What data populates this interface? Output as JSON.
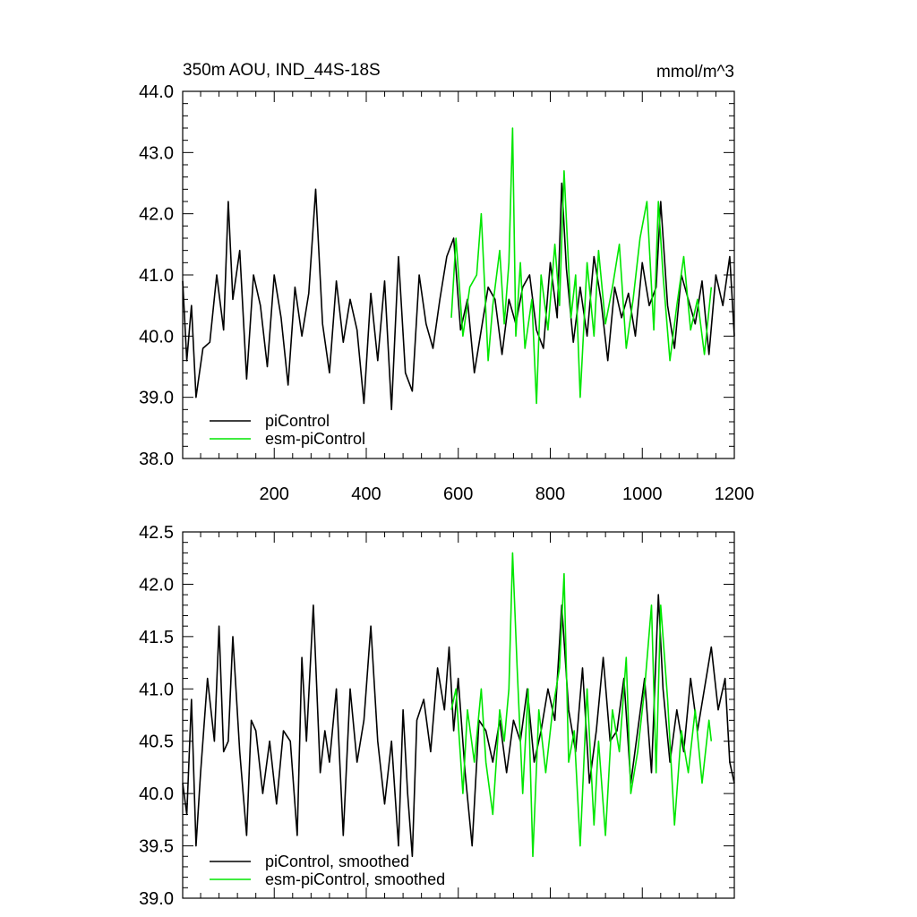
{
  "chart_data": [
    {
      "type": "line",
      "title": "350m AOU, IND_44S-18S",
      "units": "mmol/m^3",
      "xlim": [
        1,
        1200
      ],
      "ylim": [
        38.0,
        44.0
      ],
      "x_ticks": [
        200,
        400,
        600,
        800,
        1000,
        1200
      ],
      "x_tick_labels": [
        "200",
        "400",
        "600",
        "800",
        "1000",
        "1200"
      ],
      "y_ticks": [
        38.0,
        39.0,
        40.0,
        41.0,
        42.0,
        43.0,
        44.0
      ],
      "y_tick_labels": [
        "38.0",
        "39.0",
        "40.0",
        "41.0",
        "42.0",
        "43.0",
        "44.0"
      ],
      "legend_position": "bottom-left",
      "series": [
        {
          "name": "piControl",
          "color": "#000000",
          "x": [
            1,
            10,
            20,
            30,
            45,
            60,
            75,
            90,
            100,
            110,
            125,
            140,
            155,
            170,
            185,
            200,
            215,
            230,
            245,
            260,
            275,
            290,
            305,
            320,
            335,
            350,
            365,
            380,
            395,
            410,
            425,
            440,
            455,
            470,
            485,
            500,
            515,
            530,
            545,
            560,
            575,
            590,
            605,
            620,
            635,
            650,
            665,
            680,
            695,
            710,
            725,
            740,
            755,
            770,
            785,
            800,
            815,
            825,
            835,
            850,
            865,
            880,
            895,
            910,
            925,
            940,
            955,
            970,
            985,
            1000,
            1015,
            1030,
            1040,
            1055,
            1070,
            1085,
            1100,
            1115,
            1130,
            1145,
            1160,
            1175,
            1190,
            1200
          ],
          "y": [
            40.9,
            39.6,
            40.5,
            39.0,
            39.8,
            39.9,
            41.0,
            40.1,
            42.2,
            40.6,
            41.4,
            39.3,
            41.0,
            40.5,
            39.5,
            41.0,
            40.3,
            39.2,
            40.8,
            40.0,
            40.7,
            42.4,
            40.2,
            39.4,
            40.9,
            39.9,
            40.6,
            40.1,
            38.9,
            40.7,
            39.6,
            40.9,
            38.8,
            41.3,
            39.4,
            39.1,
            41.0,
            40.2,
            39.8,
            40.6,
            41.3,
            41.6,
            40.1,
            40.6,
            39.4,
            40.1,
            40.8,
            40.6,
            39.7,
            40.6,
            40.2,
            40.8,
            41.0,
            40.1,
            39.8,
            41.2,
            40.3,
            42.5,
            41.1,
            39.9,
            40.8,
            40.0,
            41.3,
            40.6,
            39.6,
            40.8,
            40.3,
            40.7,
            40.0,
            41.2,
            40.5,
            40.8,
            42.2,
            40.5,
            39.8,
            41.0,
            40.6,
            40.2,
            40.9,
            39.7,
            41.0,
            40.5,
            41.3,
            40.0
          ]
        },
        {
          "name": "esm-piControl",
          "color": "#00e600",
          "x": [
            585,
            595,
            610,
            625,
            640,
            650,
            665,
            675,
            690,
            700,
            710,
            718,
            725,
            735,
            745,
            760,
            770,
            780,
            795,
            810,
            820,
            830,
            845,
            855,
            865,
            880,
            895,
            905,
            920,
            935,
            950,
            965,
            980,
            995,
            1010,
            1025,
            1035,
            1045,
            1060,
            1075,
            1090,
            1105,
            1120,
            1135,
            1150
          ],
          "y": [
            40.3,
            41.6,
            40.0,
            40.8,
            41.0,
            42.0,
            39.6,
            40.5,
            41.4,
            40.2,
            41.2,
            43.4,
            40.0,
            41.2,
            39.8,
            40.6,
            38.9,
            41.0,
            40.1,
            41.5,
            40.5,
            42.7,
            40.3,
            41.0,
            39.0,
            41.2,
            40.0,
            41.4,
            40.2,
            40.8,
            41.5,
            39.8,
            40.6,
            41.6,
            42.2,
            40.1,
            42.2,
            41.0,
            39.6,
            40.5,
            41.3,
            40.1,
            40.6,
            39.7,
            40.8
          ]
        }
      ]
    },
    {
      "type": "line",
      "title": "",
      "xlim": [
        1,
        1200
      ],
      "ylim": [
        39.0,
        42.5
      ],
      "x_ticks": [
        200,
        400,
        600,
        800,
        1000,
        1200
      ],
      "x_tick_labels": [],
      "y_ticks": [
        39.0,
        39.5,
        40.0,
        40.5,
        41.0,
        41.5,
        42.0,
        42.5
      ],
      "y_tick_labels": [
        "39.0",
        "39.5",
        "40.0",
        "40.5",
        "41.0",
        "41.5",
        "42.0",
        "42.5"
      ],
      "legend_position": "bottom-left",
      "series": [
        {
          "name": "piControl, smoothed",
          "color": "#000000",
          "x": [
            1,
            10,
            20,
            30,
            40,
            55,
            70,
            80,
            90,
            100,
            110,
            125,
            140,
            150,
            160,
            175,
            190,
            205,
            220,
            235,
            250,
            260,
            270,
            285,
            300,
            310,
            320,
            335,
            350,
            365,
            380,
            395,
            410,
            425,
            440,
            455,
            470,
            480,
            490,
            500,
            510,
            525,
            540,
            555,
            570,
            580,
            590,
            600,
            615,
            630,
            645,
            660,
            675,
            690,
            705,
            720,
            735,
            750,
            765,
            780,
            795,
            810,
            825,
            840,
            855,
            870,
            885,
            900,
            915,
            930,
            945,
            960,
            975,
            990,
            1005,
            1020,
            1035,
            1045,
            1060,
            1075,
            1090,
            1105,
            1120,
            1135,
            1150,
            1165,
            1180,
            1190,
            1200
          ],
          "y": [
            40.1,
            39.8,
            40.9,
            39.5,
            40.2,
            41.1,
            40.5,
            41.6,
            40.4,
            40.5,
            41.5,
            40.4,
            39.6,
            40.7,
            40.6,
            40.0,
            40.5,
            39.9,
            40.6,
            40.5,
            39.6,
            41.3,
            40.5,
            41.8,
            40.2,
            40.6,
            40.3,
            41.0,
            39.6,
            41.0,
            40.3,
            40.7,
            41.6,
            40.5,
            39.9,
            40.5,
            39.5,
            40.8,
            40.0,
            39.4,
            40.7,
            40.9,
            40.4,
            41.2,
            40.8,
            41.4,
            40.6,
            41.1,
            40.2,
            39.5,
            40.7,
            40.6,
            40.3,
            40.7,
            40.2,
            40.7,
            40.5,
            41.0,
            40.3,
            40.6,
            41.0,
            40.7,
            41.8,
            40.8,
            40.4,
            41.2,
            40.1,
            40.6,
            41.3,
            40.5,
            40.6,
            41.1,
            40.1,
            40.6,
            41.1,
            40.2,
            41.9,
            41.0,
            40.3,
            40.8,
            40.4,
            41.1,
            40.6,
            41.0,
            41.4,
            40.8,
            41.1,
            40.3,
            40.1
          ]
        },
        {
          "name": "esm-piControl, smoothed",
          "color": "#00e600",
          "x": [
            585,
            595,
            610,
            620,
            635,
            650,
            660,
            675,
            690,
            700,
            710,
            718,
            728,
            740,
            752,
            762,
            775,
            790,
            805,
            820,
            830,
            840,
            852,
            865,
            880,
            895,
            905,
            920,
            935,
            950,
            965,
            975,
            990,
            1005,
            1020,
            1030,
            1040,
            1055,
            1070,
            1085,
            1100,
            1115,
            1130,
            1145,
            1150
          ],
          "y": [
            40.8,
            41.0,
            40.0,
            40.8,
            40.3,
            41.0,
            40.3,
            39.8,
            40.8,
            40.5,
            41.0,
            42.3,
            41.2,
            40.0,
            41.0,
            39.4,
            40.8,
            40.2,
            40.8,
            41.2,
            42.1,
            40.3,
            40.6,
            39.5,
            41.0,
            39.7,
            40.5,
            39.6,
            40.8,
            40.4,
            41.3,
            40.0,
            40.4,
            41.0,
            41.8,
            40.2,
            41.8,
            40.9,
            39.7,
            40.6,
            40.2,
            40.8,
            40.1,
            40.7,
            40.5
          ]
        }
      ]
    }
  ]
}
